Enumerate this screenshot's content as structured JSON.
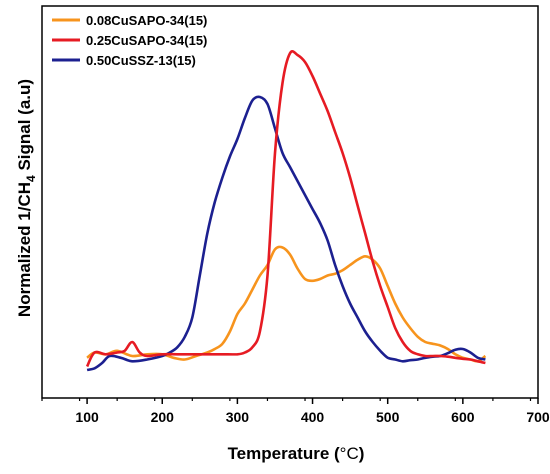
{
  "chart_data": {
    "type": "line",
    "xlabel_main": "Temperature (",
    "xlabel_unit": "°C",
    "xlabel_close": ")",
    "ylabel_pre": "Normalized 1/CH",
    "ylabel_sub": "4",
    "ylabel_post": " Signal (a.u)",
    "xlim": [
      40,
      700
    ],
    "ylim": [
      0,
      1
    ],
    "x_ticks": [
      100,
      200,
      300,
      400,
      500,
      600,
      700
    ],
    "x_tick_labels": [
      "100",
      "200",
      "300",
      "400",
      "500",
      "600",
      "700"
    ],
    "y_ticks_labeled": false,
    "grid": false,
    "legend_position": "top-left",
    "series": [
      {
        "name": "0.08CuSAPO-34(15)",
        "color": "#f7941d",
        "x": [
          100,
          110,
          125,
          140,
          160,
          180,
          200,
          215,
          230,
          245,
          260,
          270,
          280,
          290,
          300,
          310,
          320,
          330,
          340,
          350,
          360,
          370,
          380,
          390,
          400,
          410,
          420,
          430,
          440,
          450,
          460,
          470,
          480,
          490,
          500,
          510,
          520,
          530,
          540,
          550,
          560,
          570,
          580,
          590,
          600,
          610,
          620,
          630
        ],
        "y": [
          0.115,
          0.13,
          0.125,
          0.135,
          0.12,
          0.125,
          0.125,
          0.115,
          0.11,
          0.12,
          0.13,
          0.14,
          0.155,
          0.19,
          0.24,
          0.27,
          0.31,
          0.35,
          0.38,
          0.425,
          0.43,
          0.41,
          0.37,
          0.34,
          0.335,
          0.34,
          0.35,
          0.355,
          0.365,
          0.38,
          0.395,
          0.405,
          0.395,
          0.37,
          0.32,
          0.27,
          0.23,
          0.2,
          0.175,
          0.16,
          0.155,
          0.15,
          0.14,
          0.125,
          0.115,
          0.11,
          0.105,
          0.12
        ]
      },
      {
        "name": "0.25CuSAPO-34(15)",
        "color": "#e61b23",
        "x": [
          100,
          110,
          125,
          140,
          150,
          160,
          170,
          180,
          200,
          220,
          240,
          260,
          280,
          300,
          310,
          320,
          330,
          340,
          350,
          360,
          370,
          380,
          390,
          400,
          410,
          420,
          430,
          440,
          450,
          460,
          470,
          480,
          490,
          500,
          510,
          520,
          530,
          540,
          550,
          560,
          570,
          580,
          590,
          600,
          610,
          620,
          630
        ],
        "y": [
          0.09,
          0.13,
          0.125,
          0.13,
          0.135,
          0.16,
          0.13,
          0.12,
          0.125,
          0.125,
          0.125,
          0.125,
          0.125,
          0.125,
          0.13,
          0.145,
          0.19,
          0.35,
          0.7,
          0.9,
          0.985,
          0.98,
          0.96,
          0.92,
          0.87,
          0.82,
          0.76,
          0.7,
          0.63,
          0.55,
          0.47,
          0.39,
          0.32,
          0.26,
          0.2,
          0.16,
          0.135,
          0.125,
          0.12,
          0.12,
          0.12,
          0.118,
          0.115,
          0.112,
          0.11,
          0.105,
          0.1
        ]
      },
      {
        "name": "0.50CuSSZ-13(15)",
        "color": "#1c2090",
        "x": [
          100,
          110,
          120,
          130,
          145,
          160,
          180,
          200,
          210,
          220,
          230,
          240,
          250,
          260,
          270,
          280,
          290,
          300,
          310,
          320,
          330,
          340,
          350,
          360,
          370,
          380,
          390,
          400,
          410,
          420,
          430,
          440,
          450,
          460,
          470,
          480,
          490,
          500,
          510,
          520,
          530,
          540,
          550,
          560,
          570,
          580,
          590,
          600,
          610,
          620,
          630
        ],
        "y": [
          0.08,
          0.085,
          0.1,
          0.12,
          0.115,
          0.105,
          0.11,
          0.12,
          0.13,
          0.145,
          0.175,
          0.23,
          0.35,
          0.47,
          0.56,
          0.63,
          0.69,
          0.74,
          0.8,
          0.85,
          0.86,
          0.84,
          0.77,
          0.7,
          0.66,
          0.62,
          0.58,
          0.54,
          0.5,
          0.45,
          0.38,
          0.32,
          0.27,
          0.23,
          0.19,
          0.16,
          0.135,
          0.115,
          0.11,
          0.105,
          0.108,
          0.11,
          0.115,
          0.118,
          0.12,
          0.128,
          0.138,
          0.14,
          0.13,
          0.115,
          0.11
        ]
      }
    ]
  }
}
